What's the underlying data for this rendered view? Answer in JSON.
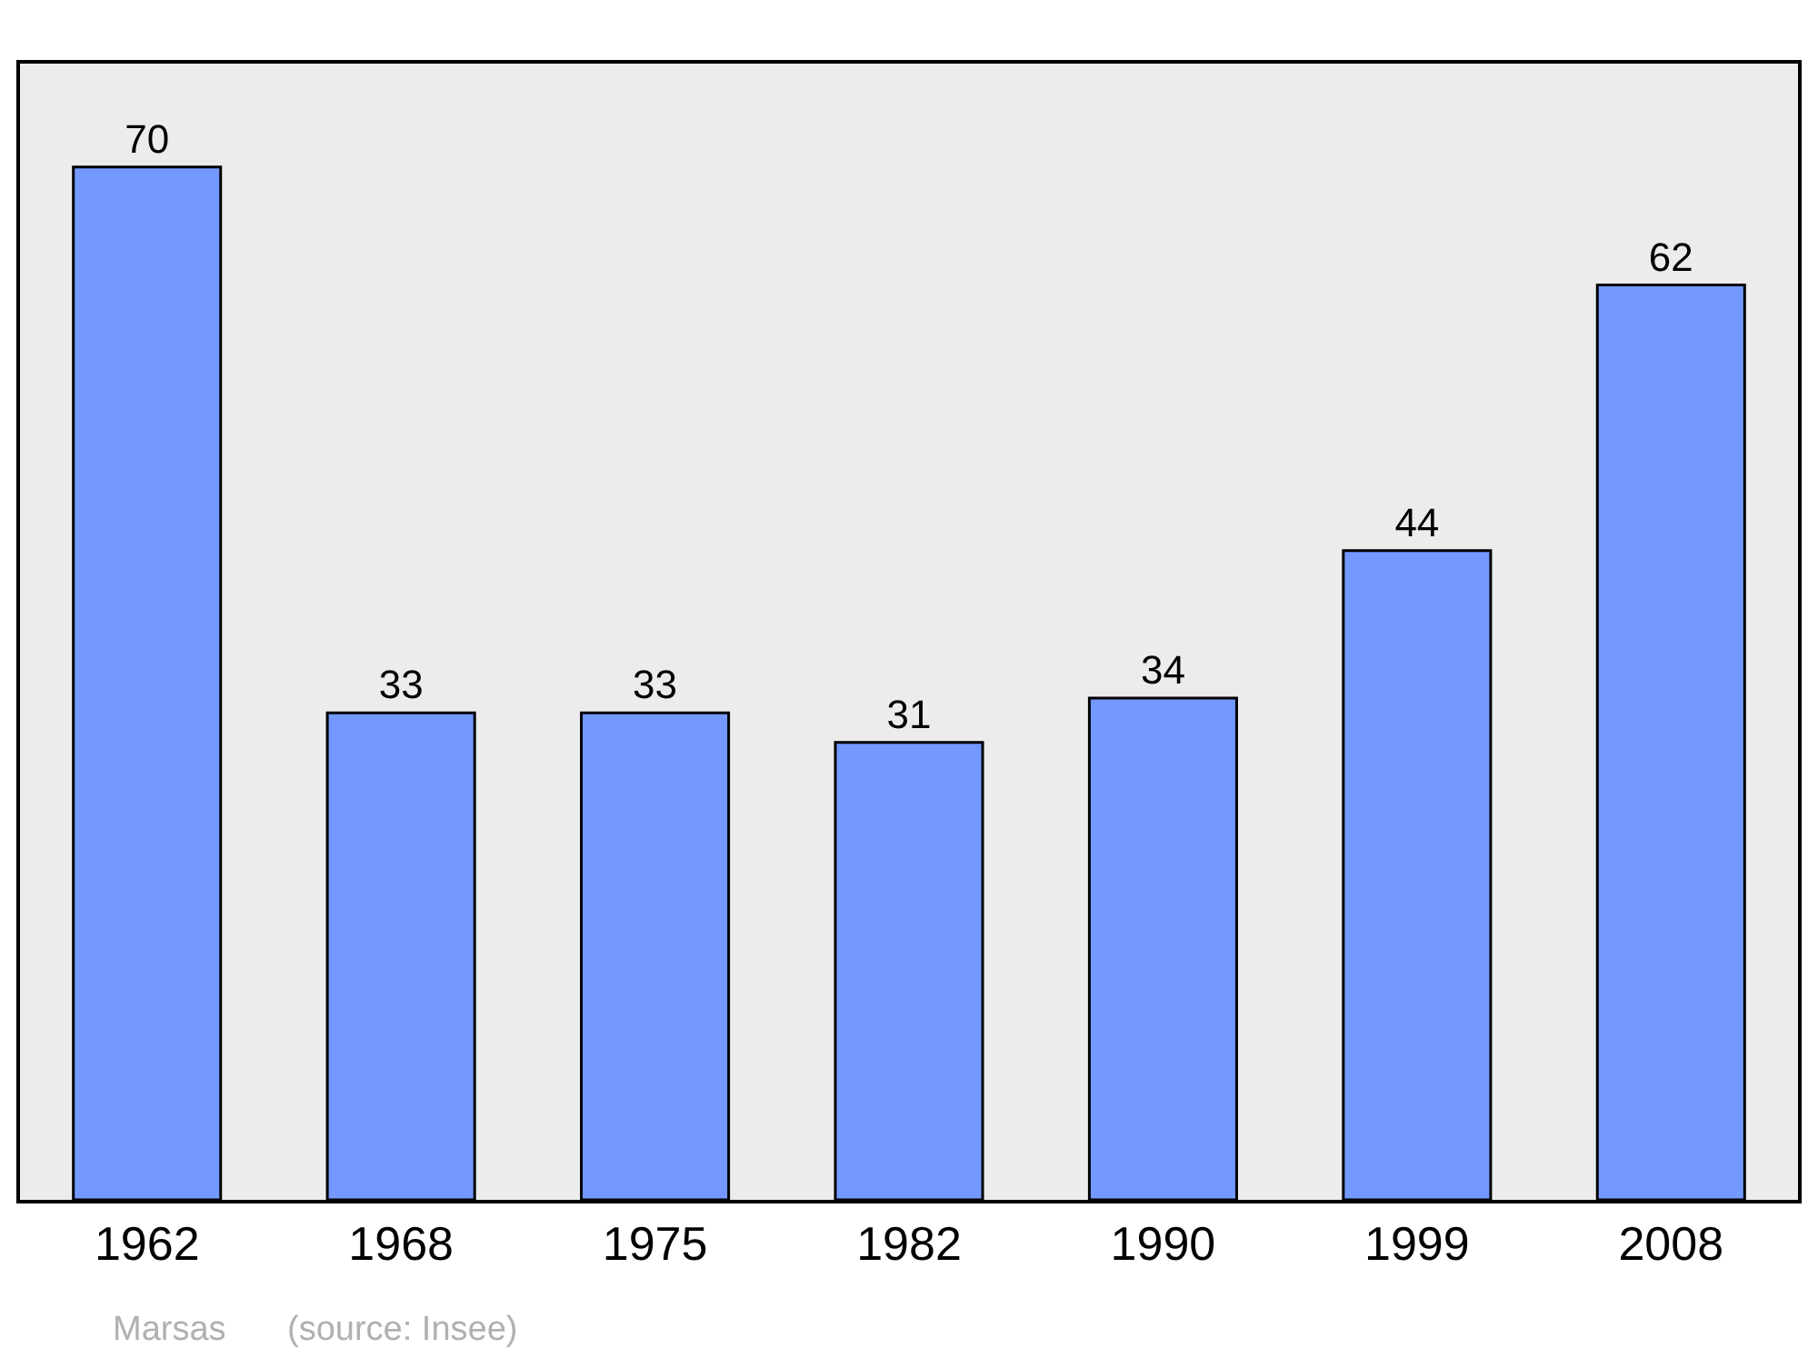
{
  "chart_data": {
    "type": "bar",
    "categories": [
      "1962",
      "1968",
      "1975",
      "1982",
      "1990",
      "1999",
      "2008"
    ],
    "values": [
      70,
      33,
      33,
      31,
      34,
      44,
      62
    ],
    "color": "#7399ff",
    "data_labels": true,
    "tick_labels": "x",
    "annotations": [
      "Marsas",
      "(source: Insee)"
    ]
  }
}
